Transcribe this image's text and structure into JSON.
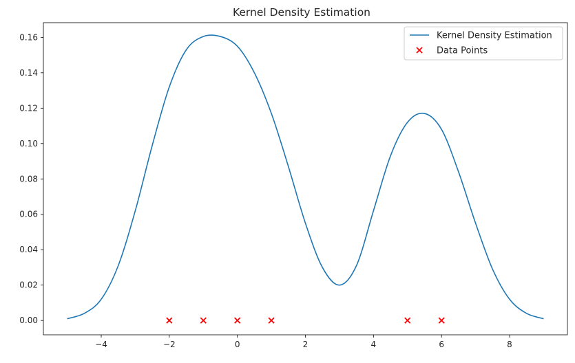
{
  "chart_data": {
    "type": "line",
    "title": "Kernel Density Estimation",
    "xlabel": "",
    "ylabel": "",
    "xlim": [
      -5.7,
      9.7
    ],
    "ylim": [
      -0.0081,
      0.1683
    ],
    "x_ticks": [
      -4,
      -2,
      0,
      2,
      4,
      6,
      8
    ],
    "x_tick_labels": [
      "−4",
      "−2",
      "0",
      "2",
      "4",
      "6",
      "8"
    ],
    "y_ticks": [
      0.0,
      0.02,
      0.04,
      0.06,
      0.08,
      0.1,
      0.12,
      0.14,
      0.16
    ],
    "y_tick_labels": [
      "0.00",
      "0.02",
      "0.04",
      "0.06",
      "0.08",
      "0.10",
      "0.12",
      "0.14",
      "0.16"
    ],
    "grid": false,
    "legend_position": "top-right",
    "series": [
      {
        "name": "Kernel Density Estimation",
        "kind": "line",
        "color": "#1f77b4",
        "x": [
          -5.0,
          -4.5,
          -4.0,
          -3.5,
          -3.0,
          -2.5,
          -2.0,
          -1.5,
          -1.0,
          -0.5,
          0.0,
          0.5,
          1.0,
          1.5,
          2.0,
          2.5,
          3.0,
          3.5,
          4.0,
          4.5,
          5.0,
          5.5,
          6.0,
          6.5,
          7.0,
          7.5,
          8.0,
          8.5,
          9.0
        ],
        "y": [
          0.001,
          0.004,
          0.012,
          0.031,
          0.062,
          0.099,
          0.132,
          0.153,
          0.1605,
          0.1605,
          0.155,
          0.14,
          0.117,
          0.087,
          0.055,
          0.03,
          0.02,
          0.031,
          0.062,
          0.093,
          0.112,
          0.117,
          0.108,
          0.084,
          0.055,
          0.029,
          0.012,
          0.004,
          0.001
        ]
      },
      {
        "name": "Data Points",
        "kind": "scatter",
        "marker": "x",
        "color": "#ff0000",
        "x": [
          -2,
          -1,
          0,
          1,
          5,
          6
        ],
        "y": [
          0,
          0,
          0,
          0,
          0,
          0
        ]
      }
    ]
  }
}
